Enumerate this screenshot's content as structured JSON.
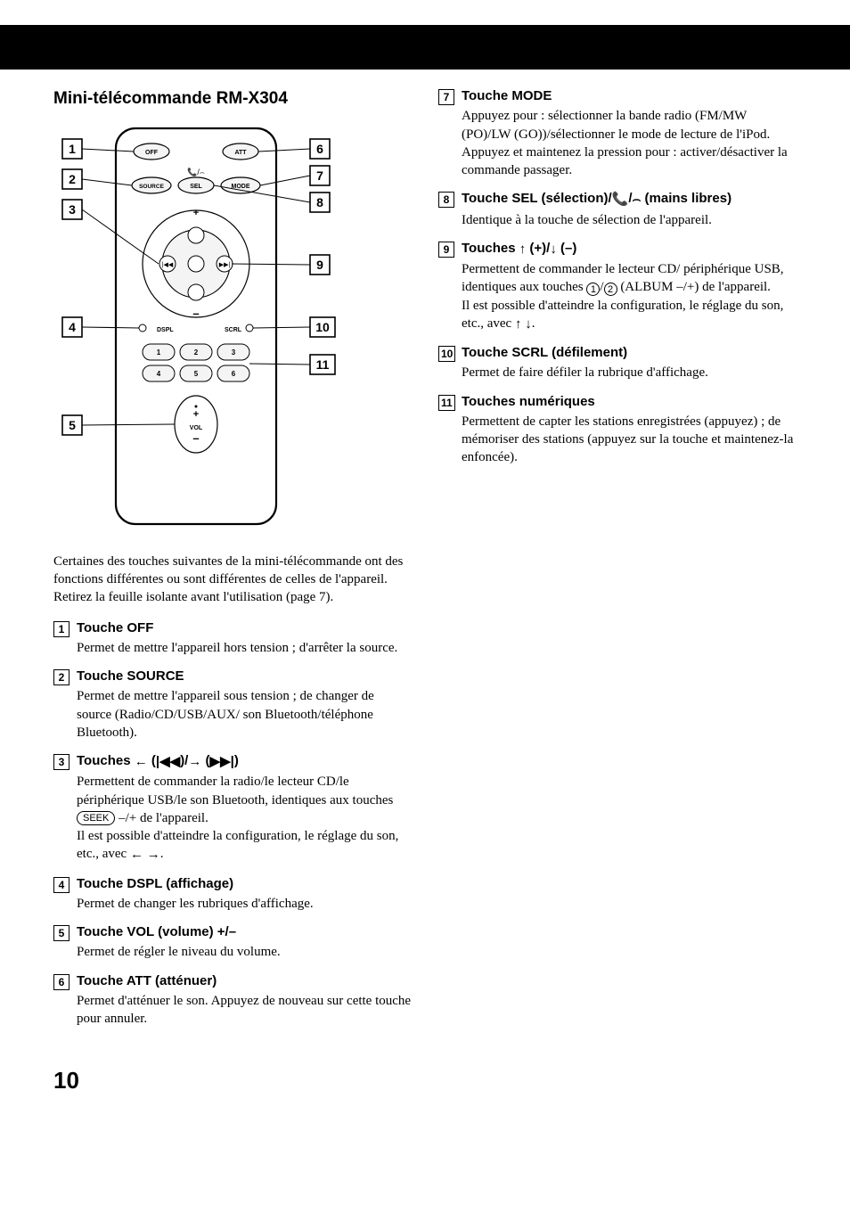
{
  "page_number": "10",
  "section_title": "Mini-télécommande RM-X304",
  "intro_text": "Certaines des touches suivantes de la mini-télécommande ont des fonctions différentes ou sont différentes de celles de l'appareil. Retirez la feuille isolante avant l'utilisation (page 7).",
  "diagram": {
    "callout_labels": [
      "1",
      "2",
      "3",
      "4",
      "5",
      "6",
      "7",
      "8",
      "9",
      "10",
      "11"
    ],
    "button_labels": {
      "off": "OFF",
      "att": "ATT",
      "source": "SOURCE",
      "sel": "SEL",
      "mode": "MODE",
      "dspl": "DSPL",
      "scrl": "SCRL",
      "vol": "VOL",
      "numbers": [
        "1",
        "2",
        "3",
        "4",
        "5",
        "6"
      ]
    },
    "arrows": {
      "up": "+",
      "down": "–"
    },
    "colors": {
      "stroke": "#000000",
      "fill_btn": "#f4f4f4",
      "bg": "#ffffff"
    }
  },
  "items_left": [
    {
      "num": "1",
      "title": "Touche OFF",
      "desc_html": "Permet de mettre l'appareil hors tension ; d'arrêter la source."
    },
    {
      "num": "2",
      "title": "Touche SOURCE",
      "desc_html": "Permet de mettre l'appareil sous tension ; de changer de source (Radio/CD/USB/AUX/ son Bluetooth/téléphone Bluetooth)."
    },
    {
      "num": "3",
      "title_html": "Touches <span class='arrow'>←</span> (<span class='arrow'>|◀◀</span>)/<span class='arrow'>→</span> (<span class='arrow'>▶▶|</span>)",
      "desc_html": "Permettent de commander la radio/le lecteur CD/le périphérique USB/le son Bluetooth, identiques aux touches <span class='ovalbtn'>SEEK</span> –/+ de l'appareil.<br>Il est possible d'atteindre la configuration, le réglage du son, etc., avec <span class='arrow'>←</span> <span class='arrow'>→</span>."
    },
    {
      "num": "4",
      "title": "Touche DSPL (affichage)",
      "desc_html": "Permet de changer les rubriques d'affichage."
    },
    {
      "num": "5",
      "title": "Touche VOL (volume) +/–",
      "desc_html": "Permet de régler le niveau du volume."
    },
    {
      "num": "6",
      "title": "Touche ATT (atténuer)",
      "desc_html": "Permet d'atténuer le son. Appuyez de nouveau sur cette touche pour annuler."
    }
  ],
  "items_right": [
    {
      "num": "7",
      "title": "Touche MODE",
      "desc_html": "Appuyez pour : sélectionner la bande radio (FM/MW (PO)/LW (GO))/sélectionner le mode de lecture de l'iPod.<br>Appuyez et maintenez la pression pour : activer/désactiver la commande passager."
    },
    {
      "num": "8",
      "title_html": "Touche SEL (sélection)/<span class='arrow'>📞</span>/<span class='arrow'>⌢</span> (mains libres)",
      "desc_html": "Identique à la touche de sélection de l'appareil."
    },
    {
      "num": "9",
      "title_html": "Touches <span class='arrow'>↑</span> (+)/<span class='arrow'>↓</span> (–)",
      "desc_html": "Permettent de commander le lecteur CD/ périphérique USB, identiques aux touches <span class='circ'>1</span>/<span class='circ'>2</span> (ALBUM –/+) de l'appareil.<br>Il est possible d'atteindre la configuration, le réglage du son, etc., avec <span class='arrow'>↑</span> <span class='arrow'>↓</span>."
    },
    {
      "num": "10",
      "title": "Touche SCRL (défilement)",
      "desc_html": "Permet de faire défiler la rubrique d'affichage."
    },
    {
      "num": "11",
      "title": "Touches numériques",
      "desc_html": "Permettent de capter les stations enregistrées (appuyez) ; de mémoriser des stations (appuyez sur la touche et maintenez-la enfoncée)."
    }
  ]
}
